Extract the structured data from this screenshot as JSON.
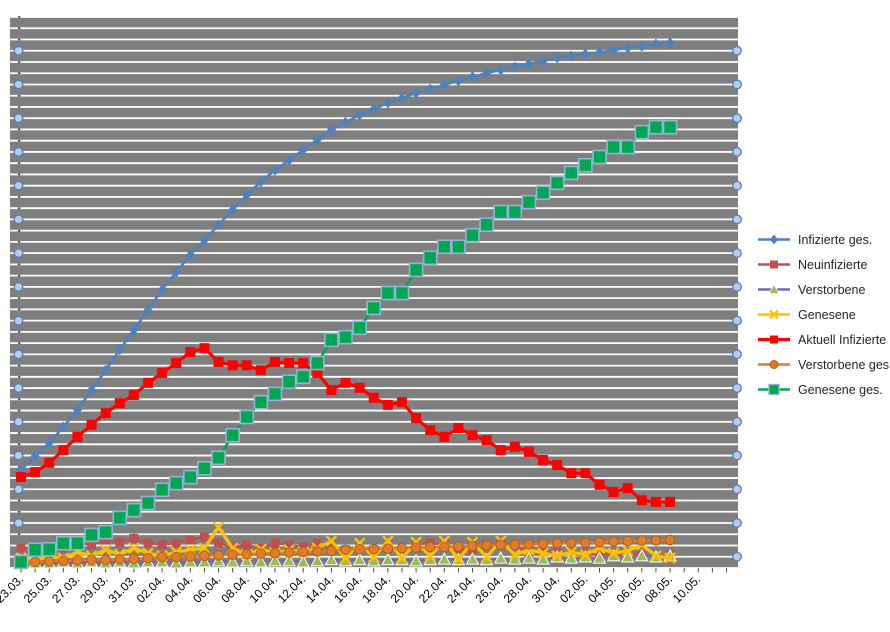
{
  "chart_data": {
    "type": "line",
    "title": "",
    "legend_position": "right",
    "plot_background": "#7F7F7F",
    "gridlines": {
      "visible": true,
      "color": "#FFFFFF",
      "count": 49
    },
    "y_axis": {
      "labels_visible": false,
      "unit": "percent_of_plot_height",
      "ylim": [
        0,
        100
      ]
    },
    "x_tick_labels": [
      "23.03.",
      "25.03.",
      "27.03.",
      "29.03.",
      "31.03.",
      "02.04.",
      "04.04.",
      "06.04.",
      "08.04.",
      "10.04.",
      "12.04.",
      "14.04.",
      "16.04.",
      "18.04.",
      "20.04.",
      "22.04.",
      "24.04.",
      "26.04.",
      "28.04.",
      "30.04.",
      "02.05.",
      "04.05.",
      "06.05.",
      "08.05.",
      "10.05."
    ],
    "points_per_series": 47,
    "edge_marker_color": {
      "fill": "#B8CCE4",
      "stroke": "#4F81BD"
    },
    "series": [
      {
        "name": "Infizierte ges.",
        "color": "#4F81BD",
        "marker": "diamond",
        "values": [
          17.8,
          20.3,
          22.7,
          25.6,
          28.7,
          32.3,
          35.9,
          39.6,
          43.2,
          46.8,
          50.5,
          53.7,
          56.8,
          59.5,
          62.3,
          65.0,
          67.7,
          70.1,
          72.2,
          74.0,
          75.9,
          77.7,
          79.5,
          80.9,
          82.2,
          83.3,
          84.4,
          85.3,
          86.2,
          86.9,
          87.7,
          88.4,
          89.1,
          89.8,
          90.4,
          90.9,
          91.5,
          92.0,
          92.6,
          92.9,
          93.3,
          93.6,
          94.0,
          94.4,
          94.7,
          95.1,
          95.3
        ]
      },
      {
        "name": "Neuinfizierte",
        "color": "#C0504D",
        "marker": "square",
        "values": [
          3.6,
          3.4,
          3.8,
          3.6,
          4.5,
          4.2,
          5.1,
          4.7,
          5.4,
          4.5,
          4.2,
          4.5,
          5.1,
          5.6,
          4.5,
          3.8,
          4.2,
          3.6,
          4.5,
          4.2,
          3.8,
          4.5,
          3.6,
          3.3,
          3.6,
          3.3,
          3.6,
          3.3,
          4.2,
          4.5,
          4.2,
          3.6,
          3.3,
          4.2,
          4.5,
          4.2,
          2.7,
          2.9,
          2.7,
          2.4,
          2.7,
          2.4,
          2.7,
          2.4,
          2.4,
          2.0,
          2.4
        ]
      },
      {
        "name": "Verstorbene",
        "color": "#8064A2",
        "marker": "triangle",
        "marker_color": "#9BBB59",
        "values": [
          0.9,
          0.9,
          0.9,
          1.1,
          0.9,
          1.1,
          0.9,
          1.1,
          0.9,
          1.1,
          1.1,
          0.9,
          1.1,
          1.1,
          1.3,
          1.1,
          1.3,
          1.1,
          1.3,
          1.3,
          1.1,
          1.3,
          1.5,
          1.3,
          1.5,
          1.3,
          1.5,
          1.5,
          1.3,
          1.5,
          1.6,
          1.5,
          1.6,
          1.5,
          1.8,
          1.6,
          1.8,
          1.6,
          2.0,
          1.8,
          2.0,
          1.8,
          2.2,
          2.0,
          2.2,
          2.0,
          2.2
        ]
      },
      {
        "name": "Genesene",
        "color": "#FFC000",
        "marker": "x",
        "values": [
          1.8,
          1.5,
          2.0,
          1.8,
          2.9,
          2.2,
          3.3,
          2.5,
          3.6,
          2.7,
          2.2,
          2.9,
          3.3,
          3.6,
          7.4,
          3.6,
          2.4,
          3.4,
          2.7,
          3.3,
          2.9,
          3.6,
          4.9,
          1.8,
          4.5,
          2.0,
          4.9,
          1.8,
          4.7,
          2.2,
          4.9,
          1.6,
          4.7,
          2.0,
          4.9,
          2.4,
          3.3,
          2.7,
          2.2,
          2.9,
          2.4,
          3.6,
          2.7,
          3.1,
          4.2,
          2.2,
          1.8
        ]
      },
      {
        "name": "Aktuell Infizierte",
        "color": "#FF0000",
        "marker": "square",
        "values": [
          16.5,
          17.4,
          19.1,
          21.4,
          23.8,
          26.0,
          28.1,
          29.9,
          31.4,
          33.6,
          35.4,
          37.2,
          39.2,
          39.9,
          37.4,
          36.8,
          36.8,
          35.9,
          37.4,
          37.2,
          37.2,
          35.4,
          32.3,
          33.6,
          32.7,
          30.9,
          29.6,
          30.1,
          27.2,
          25.0,
          23.8,
          25.4,
          24.1,
          23.2,
          21.4,
          22.0,
          21.1,
          19.6,
          18.7,
          17.2,
          17.2,
          15.1,
          13.8,
          14.5,
          12.3,
          12.0,
          12.0
        ]
      },
      {
        "name": "Verstorbene ges.",
        "color": "#E07D2B",
        "marker": "circle",
        "values": [
          1.1,
          1.1,
          1.2,
          1.3,
          1.4,
          1.5,
          1.5,
          1.6,
          1.7,
          1.8,
          2.0,
          2.0,
          2.1,
          2.2,
          2.3,
          2.4,
          2.5,
          2.6,
          2.7,
          2.8,
          2.9,
          3.0,
          3.1,
          3.3,
          3.4,
          3.4,
          3.5,
          3.6,
          3.7,
          3.8,
          3.8,
          3.9,
          4.0,
          4.1,
          4.2,
          4.2,
          4.3,
          4.4,
          4.5,
          4.5,
          4.6,
          4.7,
          4.8,
          4.9,
          5.0,
          5.0,
          5.1
        ]
      },
      {
        "name": "Genesene ges.",
        "color": "#00A651",
        "marker": "square",
        "marker_border": "#95B3D7",
        "values": [
          1.1,
          3.3,
          3.4,
          4.5,
          4.5,
          6.0,
          6.5,
          9.1,
          10.5,
          11.8,
          14.2,
          15.4,
          16.5,
          18.1,
          20.0,
          24.1,
          27.4,
          30.1,
          31.6,
          33.8,
          34.7,
          37.2,
          41.4,
          41.9,
          43.6,
          47.2,
          49.9,
          49.9,
          54.1,
          56.3,
          58.3,
          58.3,
          60.4,
          62.3,
          64.6,
          64.6,
          66.4,
          68.1,
          69.9,
          71.7,
          73.1,
          74.6,
          76.4,
          76.4,
          79.1,
          80.0,
          80.0
        ]
      }
    ]
  }
}
